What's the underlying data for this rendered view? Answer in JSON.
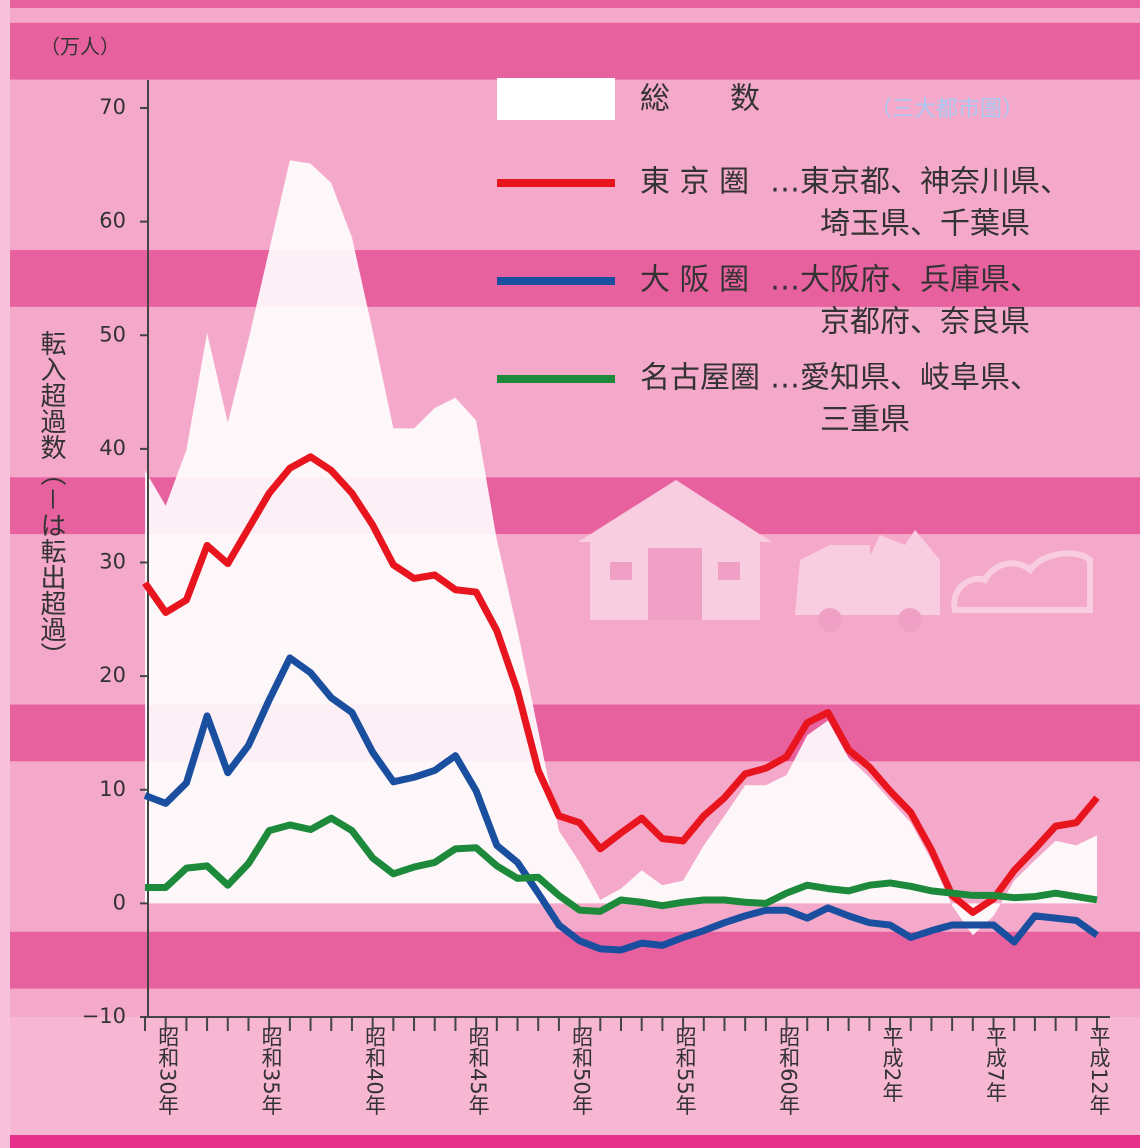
{
  "chart_data": {
    "type": "line",
    "unit_label": "（万人）",
    "y_axis_label": "転入超過数（－は転出超過）",
    "annotation": "（三大都市圏）",
    "categories": [
      null,
      "昭和30年",
      null,
      null,
      null,
      null,
      "昭和35年",
      null,
      null,
      null,
      null,
      "昭和40年",
      null,
      null,
      null,
      null,
      "昭和45年",
      null,
      null,
      null,
      null,
      "昭和50年",
      null,
      null,
      null,
      null,
      "昭和55年",
      null,
      null,
      null,
      null,
      "昭和60年",
      null,
      null,
      null,
      null,
      "平成2年",
      null,
      null,
      null,
      null,
      "平成7年",
      null,
      null,
      null,
      null,
      "平成12年"
    ],
    "ylim": [
      -10,
      70
    ],
    "yticks": [
      {
        "value": -10,
        "label": "−10"
      },
      0,
      10,
      20,
      30,
      40,
      50,
      60,
      70
    ],
    "grid": false,
    "area": {
      "name": "総　　数",
      "color": "#ffffff",
      "values": [
        38.1,
        35,
        39.9,
        50.2,
        42.3,
        49.6,
        57.5,
        65.4,
        65.1,
        63.4,
        58.6,
        50.4,
        41.8,
        41.8,
        43.6,
        44.5,
        42.5,
        32,
        24,
        15.2,
        6.4,
        3.6,
        0.3,
        1.3,
        2.9,
        1.6,
        2,
        5.1,
        7.7,
        10.4,
        10.4,
        11.3,
        14.8,
        16.1,
        12.8,
        11.1,
        9.1,
        7.1,
        3.8,
        -0.2,
        -2.8,
        -1.1,
        2,
        3.8,
        5.5,
        5.1,
        6
      ]
    },
    "series": [
      {
        "name": "東 京 圏",
        "color": "#e8151e",
        "description": [
          "…東京都、神奈川県、",
          "埼玉県、千葉県"
        ],
        "values": [
          28.2,
          25.6,
          26.7,
          31.5,
          29.9,
          33,
          36.1,
          38.3,
          39.3,
          38.1,
          36.1,
          33.3,
          29.8,
          28.6,
          28.9,
          27.6,
          27.4,
          24,
          18.7,
          11.7,
          7.7,
          7.1,
          4.8,
          6.2,
          7.5,
          5.7,
          5.5,
          7.7,
          9.3,
          11.4,
          11.9,
          12.9,
          15.9,
          16.8,
          13.5,
          12,
          9.9,
          8,
          4.7,
          0.7,
          -0.8,
          0.4,
          2.9,
          4.8,
          6.8,
          7.1,
          9.3
        ]
      },
      {
        "name": "大 阪 圏",
        "color": "#1a4fa0",
        "description": [
          "…大阪府、兵庫県、",
          "京都府、奈良県"
        ],
        "values": [
          9.5,
          8.8,
          10.6,
          16.5,
          11.5,
          13.9,
          17.9,
          21.6,
          20.3,
          18.1,
          16.8,
          13.3,
          10.7,
          11.1,
          11.7,
          13,
          9.9,
          5.1,
          3.6,
          0.9,
          -1.9,
          -3.3,
          -4,
          -4.1,
          -3.5,
          -3.7,
          -3,
          -2.4,
          -1.7,
          -1.1,
          -0.6,
          -0.6,
          -1.3,
          -0.4,
          -1.1,
          -1.7,
          -1.9,
          -3,
          -2.4,
          -1.9,
          -1.9,
          -1.9,
          -3.4,
          -1.1,
          -1.3,
          -1.5,
          -2.8
        ]
      },
      {
        "name": "名古屋圏",
        "color": "#1c8a3a",
        "description": [
          "…愛知県、岐阜県、",
          "三重県"
        ],
        "values": [
          1.4,
          1.4,
          3.1,
          3.3,
          1.6,
          3.5,
          6.4,
          6.9,
          6.5,
          7.5,
          6.4,
          4,
          2.6,
          3.2,
          3.6,
          4.8,
          4.9,
          3.3,
          2.2,
          2.3,
          0.7,
          -0.6,
          -0.7,
          0.3,
          0.1,
          -0.2,
          0.1,
          0.3,
          0.3,
          0.1,
          0,
          0.9,
          1.6,
          1.3,
          1.1,
          1.6,
          1.8,
          1.5,
          1.1,
          0.9,
          0.7,
          0.7,
          0.5,
          0.6,
          0.9,
          0.6,
          0.3
        ]
      }
    ]
  }
}
